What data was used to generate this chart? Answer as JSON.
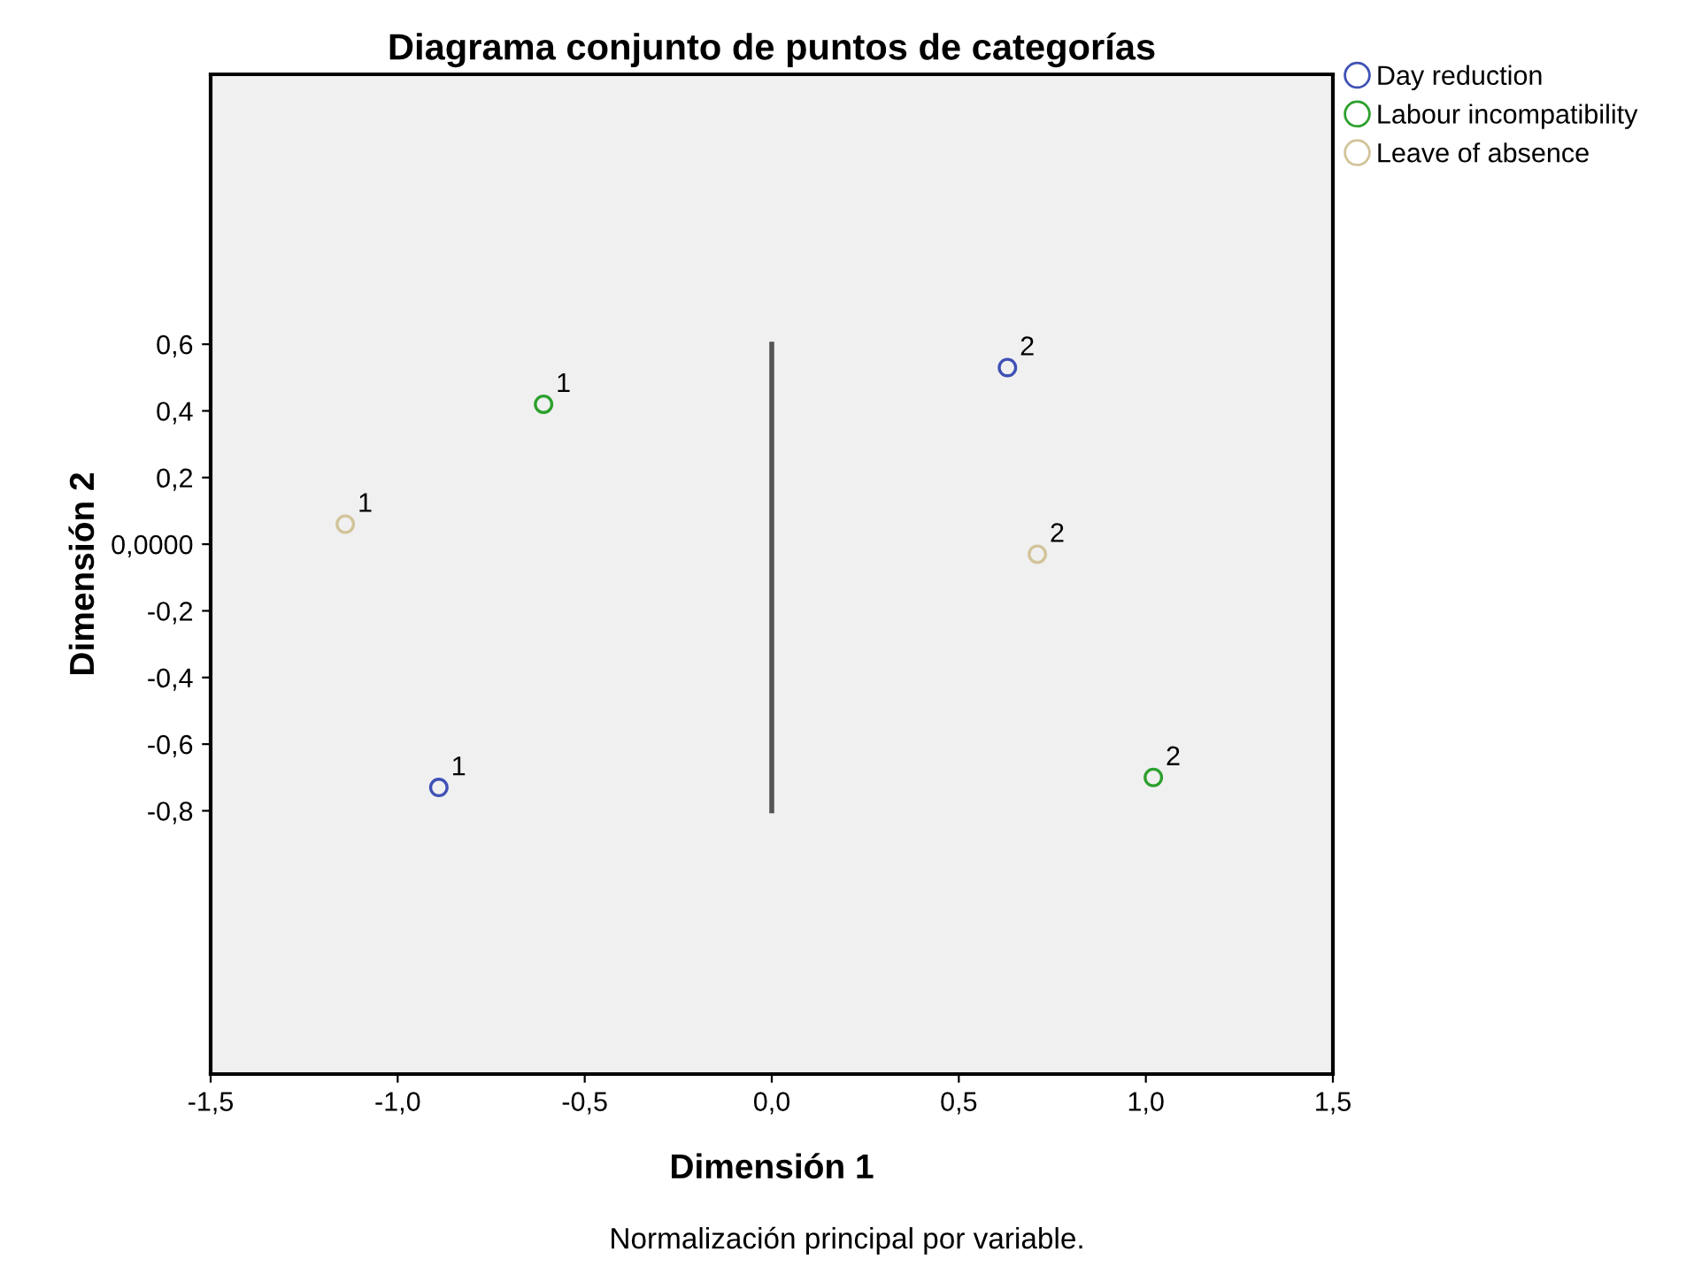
{
  "chart_data": {
    "type": "scatter",
    "title": "Diagrama conjunto de puntos de categorías",
    "xlabel": "Dimensión 1",
    "ylabel": "Dimensión 2",
    "annotations": [
      "Normalización principal por variable.",
      {
        "text": "1",
        "x": -0.89,
        "y": -0.73
      },
      {
        "text": "2",
        "x": 0.63,
        "y": 0.53
      },
      {
        "text": "1",
        "x": -0.61,
        "y": 0.42
      },
      {
        "text": "2",
        "x": 1.02,
        "y": -0.7
      },
      {
        "text": "1",
        "x": -1.14,
        "y": 0.06
      },
      {
        "text": "2",
        "x": 0.71,
        "y": -0.03
      }
    ],
    "series": [
      {
        "name": "Day reduction",
        "color": "#3f51b5",
        "x": [
          -0.89,
          0.63
        ],
        "values": [
          -0.73,
          0.53
        ]
      },
      {
        "name": "Labour incompatibility",
        "color": "#2ca02c",
        "x": [
          -0.61,
          1.02
        ],
        "values": [
          0.42,
          -0.7
        ]
      },
      {
        "name": "Leave of absence",
        "color": "#d2c49a",
        "x": [
          -1.14,
          0.71
        ],
        "values": [
          0.06,
          -0.03
        ]
      },
      {
        "type": "line",
        "color": "#555555",
        "x": [
          0,
          0
        ],
        "values": [
          0.6,
          -0.8
        ],
        "marker": "none"
      }
    ],
    "marker": "circle",
    "legend": "top right",
    "grid": false,
    "xlim": [
      -1.5,
      1.5
    ],
    "xticks": [
      {
        "value": -1.5,
        "label": "-1,5"
      },
      {
        "value": -1.0,
        "label": "-1,0"
      },
      {
        "value": -0.5,
        "label": "-0,5"
      },
      {
        "value": 0.0,
        "label": "0,0"
      },
      {
        "value": 0.5,
        "label": "0,5"
      },
      {
        "value": 1.0,
        "label": "1,0"
      },
      {
        "value": 1.5,
        "label": "1,5"
      }
    ],
    "ylim": [
      -1.59,
      1.41
    ],
    "yticks": [
      {
        "value": 0.6,
        "label": "0,6"
      },
      {
        "value": 0.4,
        "label": "0,4"
      },
      {
        "value": 0.2,
        "label": "0,2"
      },
      {
        "value": 0.0,
        "label": "0,0000"
      },
      {
        "value": -0.2,
        "label": "-0,2"
      },
      {
        "value": -0.4,
        "label": "-0,4"
      },
      {
        "value": -0.6,
        "label": "-0,6"
      },
      {
        "value": -0.8,
        "label": "-0,8"
      }
    ]
  }
}
